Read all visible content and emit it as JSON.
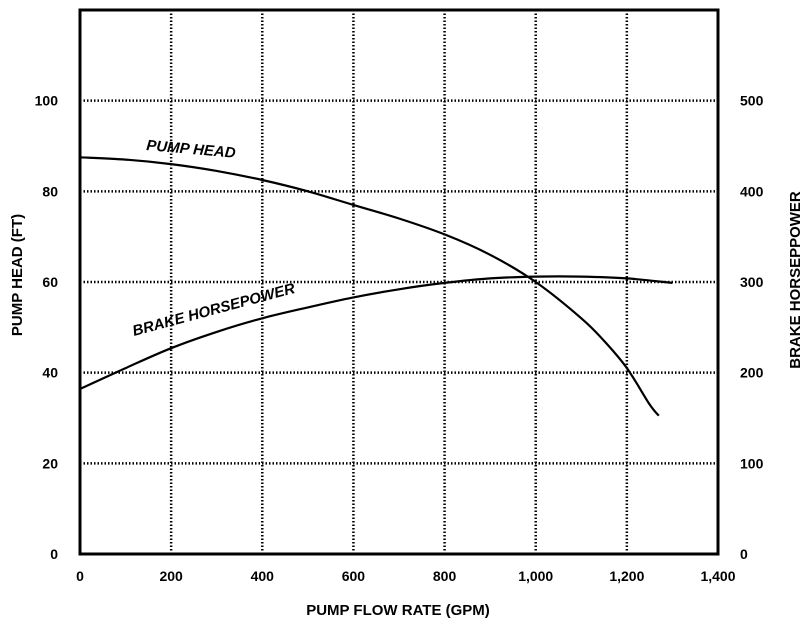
{
  "chart_data": {
    "type": "line",
    "title": "",
    "xlabel": "PUMP FLOW RATE (GPM)",
    "ylabel": "PUMP HEAD (FT)",
    "y2label": "BRAKE HORSEPPOWER",
    "xlim": [
      0,
      1400
    ],
    "ylim": [
      0,
      120
    ],
    "y2lim": [
      0,
      600
    ],
    "grid": true,
    "x_ticks": [
      {
        "value": 0,
        "label": "0"
      },
      {
        "value": 200,
        "label": "200"
      },
      {
        "value": 400,
        "label": "400"
      },
      {
        "value": 600,
        "label": "600"
      },
      {
        "value": 800,
        "label": "800"
      },
      {
        "value": 1000,
        "label": "1,000"
      },
      {
        "value": 1200,
        "label": "1,200"
      },
      {
        "value": 1400,
        "label": "1,400"
      }
    ],
    "y_ticks": [
      {
        "value": 0,
        "label": "0"
      },
      {
        "value": 20,
        "label": "20"
      },
      {
        "value": 40,
        "label": "40"
      },
      {
        "value": 60,
        "label": "60"
      },
      {
        "value": 80,
        "label": "80"
      },
      {
        "value": 100,
        "label": "100"
      }
    ],
    "y2_ticks": [
      {
        "value": 0,
        "label": "0"
      },
      {
        "value": 100,
        "label": "100"
      },
      {
        "value": 200,
        "label": "200"
      },
      {
        "value": 300,
        "label": "300"
      },
      {
        "value": 400,
        "label": "400"
      },
      {
        "value": 500,
        "label": "500"
      }
    ],
    "series": [
      {
        "name": "PUMP HEAD",
        "axis": "left",
        "x": [
          0,
          100,
          200,
          300,
          400,
          500,
          600,
          700,
          800,
          900,
          1000,
          1100,
          1150,
          1200,
          1250,
          1270
        ],
        "values": [
          87.5,
          87,
          86,
          84.5,
          82.5,
          80,
          77,
          74,
          70.5,
          66,
          60,
          52,
          47,
          41,
          33,
          30.5
        ]
      },
      {
        "name": "BRAKE HORSEPOWER",
        "axis": "right",
        "x": [
          0,
          100,
          200,
          300,
          400,
          500,
          600,
          700,
          800,
          900,
          1000,
          1100,
          1200,
          1300
        ],
        "values": [
          182,
          205,
          227,
          245,
          260,
          272,
          283,
          292,
          299,
          304,
          306,
          306,
          304,
          299
        ]
      }
    ]
  }
}
